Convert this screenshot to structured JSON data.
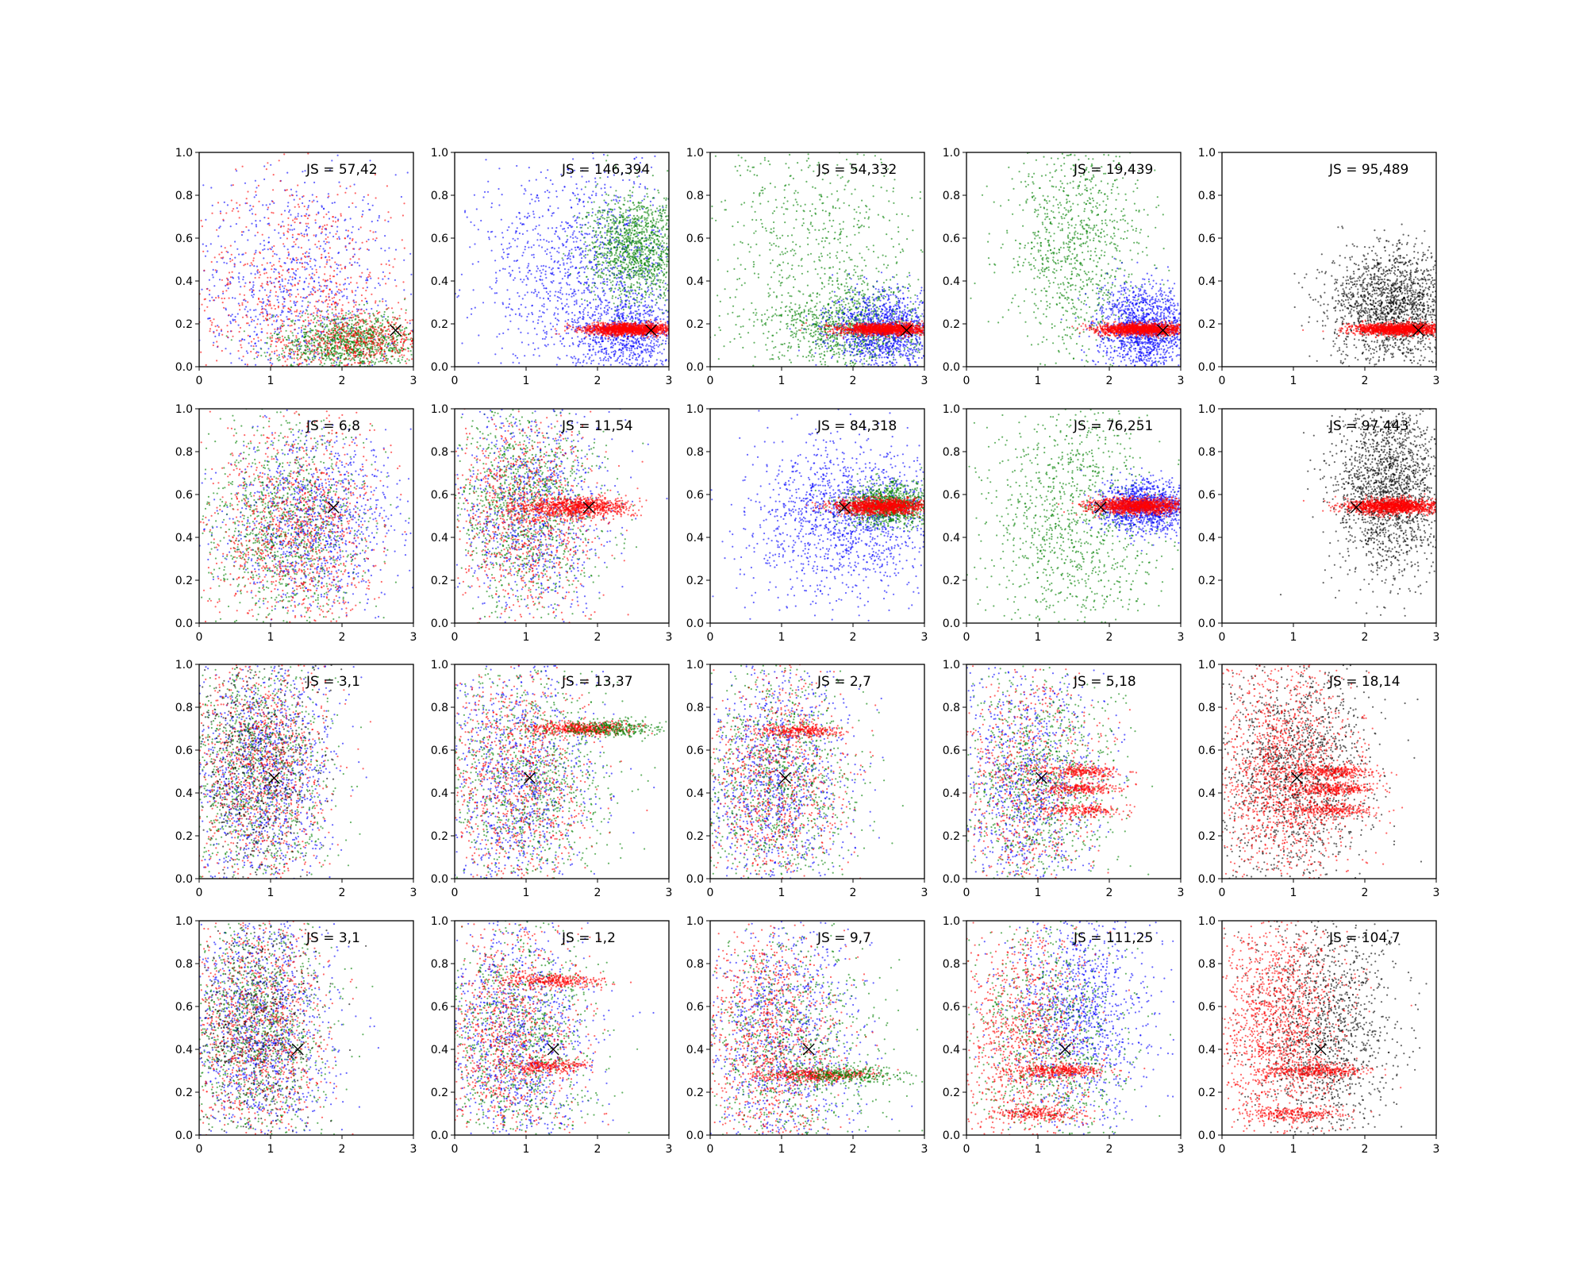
{
  "chart_data": {
    "type": "scatter",
    "grid": {
      "rows": 4,
      "cols": 5
    },
    "xlim": [
      0,
      3
    ],
    "ylim": [
      0,
      1
    ],
    "xticks": [
      "0",
      "1",
      "2",
      "3"
    ],
    "yticks": [
      "0.0",
      "0.2",
      "0.4",
      "0.6",
      "0.8",
      "1.0"
    ],
    "legend": "none",
    "grid_lines": false,
    "colors": {
      "blue": "#0000ff",
      "green": "#008000",
      "red": "#ff0000",
      "black": "#000000"
    },
    "marker": {
      "symbol": "x",
      "color": "#000000"
    },
    "panels": [
      {
        "label": "JS = 57,42",
        "marker_x": 2.75,
        "marker_y": 0.17,
        "clouds": [
          {
            "color": "blue",
            "n": 900,
            "mx": 1.3,
            "sx": 0.75,
            "my": 0.35,
            "sy": 0.28
          },
          {
            "color": "red",
            "n": 900,
            "mx": 1.4,
            "sx": 0.75,
            "my": 0.3,
            "sy": 0.3
          },
          {
            "color": "green",
            "n": 1100,
            "mx": 2.15,
            "sx": 0.55,
            "my": 0.11,
            "sy": 0.07
          },
          {
            "color": "red",
            "n": 500,
            "mx": 2.3,
            "sx": 0.45,
            "my": 0.12,
            "sy": 0.06
          }
        ]
      },
      {
        "label": "JS = 146,394",
        "marker_x": 2.75,
        "marker_y": 0.17,
        "clouds": [
          {
            "color": "blue",
            "n": 1300,
            "mx": 1.9,
            "sx": 0.8,
            "my": 0.45,
            "sy": 0.25
          },
          {
            "color": "blue",
            "n": 800,
            "mx": 2.4,
            "sx": 0.4,
            "my": 0.15,
            "sy": 0.09
          },
          {
            "color": "green",
            "n": 1300,
            "mx": 2.55,
            "sx": 0.35,
            "my": 0.55,
            "sy": 0.13
          },
          {
            "color": "red",
            "n": 1400,
            "mx": 2.45,
            "sx": 0.32,
            "my": 0.175,
            "sy": 0.014
          }
        ]
      },
      {
        "label": "JS = 54,332",
        "marker_x": 2.75,
        "marker_y": 0.17,
        "clouds": [
          {
            "color": "green",
            "n": 700,
            "mx": 1.5,
            "sx": 0.75,
            "my": 0.55,
            "sy": 0.3
          },
          {
            "color": "green",
            "n": 1000,
            "mx": 2.0,
            "sx": 0.55,
            "my": 0.18,
            "sy": 0.1
          },
          {
            "color": "blue",
            "n": 1200,
            "mx": 2.45,
            "sx": 0.38,
            "my": 0.17,
            "sy": 0.09
          },
          {
            "color": "red",
            "n": 1400,
            "mx": 2.45,
            "sx": 0.32,
            "my": 0.175,
            "sy": 0.014
          }
        ]
      },
      {
        "label": "JS = 19,439",
        "marker_x": 2.75,
        "marker_y": 0.17,
        "clouds": [
          {
            "color": "green",
            "n": 1000,
            "mx": 1.55,
            "sx": 0.5,
            "my": 0.55,
            "sy": 0.28
          },
          {
            "color": "blue",
            "n": 1400,
            "mx": 2.5,
            "sx": 0.33,
            "my": 0.18,
            "sy": 0.1
          },
          {
            "color": "red",
            "n": 1400,
            "mx": 2.45,
            "sx": 0.32,
            "my": 0.175,
            "sy": 0.014
          }
        ]
      },
      {
        "label": "JS = 95,489",
        "marker_x": 2.75,
        "marker_y": 0.17,
        "clouds": [
          {
            "color": "black",
            "n": 1800,
            "mx": 2.4,
            "sx": 0.45,
            "my": 0.28,
            "sy": 0.14
          },
          {
            "color": "red",
            "n": 1400,
            "mx": 2.45,
            "sx": 0.32,
            "my": 0.175,
            "sy": 0.014
          }
        ]
      },
      {
        "label": "JS = 6,8",
        "marker_x": 1.88,
        "marker_y": 0.54,
        "clouds": [
          {
            "color": "blue",
            "n": 1100,
            "mx": 1.6,
            "sx": 0.6,
            "my": 0.48,
            "sy": 0.2
          },
          {
            "color": "green",
            "n": 1100,
            "mx": 1.2,
            "sx": 0.55,
            "my": 0.45,
            "sy": 0.25
          },
          {
            "color": "red",
            "n": 1100,
            "mx": 1.35,
            "sx": 0.6,
            "my": 0.45,
            "sy": 0.25
          }
        ]
      },
      {
        "label": "JS = 11,54",
        "marker_x": 1.88,
        "marker_y": 0.54,
        "clouds": [
          {
            "color": "green",
            "n": 1200,
            "mx": 1.0,
            "sx": 0.5,
            "my": 0.55,
            "sy": 0.25
          },
          {
            "color": "blue",
            "n": 900,
            "mx": 1.1,
            "sx": 0.55,
            "my": 0.5,
            "sy": 0.25
          },
          {
            "color": "red",
            "n": 900,
            "mx": 1.0,
            "sx": 0.5,
            "my": 0.5,
            "sy": 0.25
          },
          {
            "color": "red",
            "n": 900,
            "mx": 1.7,
            "sx": 0.4,
            "my": 0.54,
            "sy": 0.025
          }
        ]
      },
      {
        "label": "JS = 84,318",
        "marker_x": 1.88,
        "marker_y": 0.54,
        "clouds": [
          {
            "color": "blue",
            "n": 1000,
            "mx": 2.1,
            "sx": 0.6,
            "my": 0.52,
            "sy": 0.15
          },
          {
            "color": "blue",
            "n": 500,
            "mx": 1.6,
            "sx": 0.7,
            "my": 0.45,
            "sy": 0.25
          },
          {
            "color": "green",
            "n": 1000,
            "mx": 2.5,
            "sx": 0.3,
            "my": 0.55,
            "sy": 0.05
          },
          {
            "color": "red",
            "n": 1300,
            "mx": 2.4,
            "sx": 0.33,
            "my": 0.545,
            "sy": 0.018
          }
        ]
      },
      {
        "label": "JS = 76,251",
        "marker_x": 1.88,
        "marker_y": 0.54,
        "clouds": [
          {
            "color": "green",
            "n": 1100,
            "mx": 1.5,
            "sx": 0.6,
            "my": 0.5,
            "sy": 0.28
          },
          {
            "color": "blue",
            "n": 1200,
            "mx": 2.5,
            "sx": 0.33,
            "my": 0.54,
            "sy": 0.06
          },
          {
            "color": "red",
            "n": 1300,
            "mx": 2.4,
            "sx": 0.33,
            "my": 0.545,
            "sy": 0.018
          }
        ]
      },
      {
        "label": "JS = 97,443",
        "marker_x": 1.88,
        "marker_y": 0.54,
        "clouds": [
          {
            "color": "black",
            "n": 1900,
            "mx": 2.35,
            "sx": 0.4,
            "my": 0.62,
            "sy": 0.2
          },
          {
            "color": "red",
            "n": 1300,
            "mx": 2.4,
            "sx": 0.33,
            "my": 0.545,
            "sy": 0.018
          }
        ]
      },
      {
        "label": "JS = 3,1",
        "marker_x": 1.05,
        "marker_y": 0.47,
        "clouds": [
          {
            "color": "blue",
            "n": 1200,
            "mx": 0.85,
            "sx": 0.5,
            "my": 0.5,
            "sy": 0.28
          },
          {
            "color": "green",
            "n": 1100,
            "mx": 0.8,
            "sx": 0.5,
            "my": 0.5,
            "sy": 0.28
          },
          {
            "color": "red",
            "n": 1100,
            "mx": 0.8,
            "sx": 0.5,
            "my": 0.5,
            "sy": 0.28
          },
          {
            "color": "black",
            "n": 500,
            "mx": 0.8,
            "sx": 0.45,
            "my": 0.5,
            "sy": 0.28
          }
        ]
      },
      {
        "label": "JS = 13,37",
        "marker_x": 1.05,
        "marker_y": 0.47,
        "clouds": [
          {
            "color": "blue",
            "n": 1000,
            "mx": 0.9,
            "sx": 0.55,
            "my": 0.45,
            "sy": 0.28
          },
          {
            "color": "green",
            "n": 1000,
            "mx": 1.0,
            "sx": 0.6,
            "my": 0.45,
            "sy": 0.28
          },
          {
            "color": "red",
            "n": 900,
            "mx": 0.85,
            "sx": 0.5,
            "my": 0.45,
            "sy": 0.28
          },
          {
            "color": "red",
            "n": 500,
            "mx": 1.8,
            "sx": 0.35,
            "my": 0.7,
            "sy": 0.015
          },
          {
            "color": "green",
            "n": 300,
            "mx": 2.2,
            "sx": 0.35,
            "my": 0.7,
            "sy": 0.02
          }
        ]
      },
      {
        "label": "JS = 2,7",
        "marker_x": 1.05,
        "marker_y": 0.47,
        "clouds": [
          {
            "color": "blue",
            "n": 1100,
            "mx": 0.9,
            "sx": 0.5,
            "my": 0.45,
            "sy": 0.28
          },
          {
            "color": "green",
            "n": 1000,
            "mx": 0.95,
            "sx": 0.55,
            "my": 0.45,
            "sy": 0.28
          },
          {
            "color": "red",
            "n": 900,
            "mx": 0.85,
            "sx": 0.5,
            "my": 0.45,
            "sy": 0.28
          },
          {
            "color": "red",
            "n": 300,
            "mx": 1.3,
            "sx": 0.3,
            "my": 0.69,
            "sy": 0.015
          }
        ]
      },
      {
        "label": "JS = 5,18",
        "marker_x": 1.05,
        "marker_y": 0.47,
        "clouds": [
          {
            "color": "blue",
            "n": 1000,
            "mx": 0.85,
            "sx": 0.5,
            "my": 0.45,
            "sy": 0.28
          },
          {
            "color": "green",
            "n": 1000,
            "mx": 1.0,
            "sx": 0.55,
            "my": 0.45,
            "sy": 0.28
          },
          {
            "color": "red",
            "n": 700,
            "mx": 0.85,
            "sx": 0.5,
            "my": 0.45,
            "sy": 0.28
          },
          {
            "color": "red",
            "n": 250,
            "mx": 1.6,
            "sx": 0.3,
            "my": 0.5,
            "sy": 0.015
          },
          {
            "color": "red",
            "n": 250,
            "mx": 1.6,
            "sx": 0.3,
            "my": 0.42,
            "sy": 0.015
          },
          {
            "color": "red",
            "n": 200,
            "mx": 1.6,
            "sx": 0.3,
            "my": 0.32,
            "sy": 0.015
          }
        ]
      },
      {
        "label": "JS = 18,14",
        "marker_x": 1.05,
        "marker_y": 0.47,
        "clouds": [
          {
            "color": "black",
            "n": 1500,
            "mx": 1.05,
            "sx": 0.55,
            "my": 0.5,
            "sy": 0.27
          },
          {
            "color": "red",
            "n": 1500,
            "mx": 0.85,
            "sx": 0.5,
            "my": 0.5,
            "sy": 0.27
          },
          {
            "color": "red",
            "n": 300,
            "mx": 1.55,
            "sx": 0.3,
            "my": 0.5,
            "sy": 0.015
          },
          {
            "color": "red",
            "n": 300,
            "mx": 1.55,
            "sx": 0.3,
            "my": 0.42,
            "sy": 0.015
          },
          {
            "color": "red",
            "n": 250,
            "mx": 1.55,
            "sx": 0.3,
            "my": 0.32,
            "sy": 0.015
          }
        ]
      },
      {
        "label": "JS = 3,1",
        "marker_x": 1.38,
        "marker_y": 0.4,
        "clouds": [
          {
            "color": "blue",
            "n": 1200,
            "mx": 0.85,
            "sx": 0.5,
            "my": 0.5,
            "sy": 0.28
          },
          {
            "color": "green",
            "n": 1100,
            "mx": 0.8,
            "sx": 0.5,
            "my": 0.5,
            "sy": 0.28
          },
          {
            "color": "red",
            "n": 1100,
            "mx": 0.8,
            "sx": 0.5,
            "my": 0.5,
            "sy": 0.28
          },
          {
            "color": "black",
            "n": 500,
            "mx": 0.8,
            "sx": 0.45,
            "my": 0.5,
            "sy": 0.28
          }
        ]
      },
      {
        "label": "JS = 1,2",
        "marker_x": 1.38,
        "marker_y": 0.4,
        "clouds": [
          {
            "color": "blue",
            "n": 1100,
            "mx": 0.85,
            "sx": 0.5,
            "my": 0.45,
            "sy": 0.28
          },
          {
            "color": "green",
            "n": 1000,
            "mx": 0.9,
            "sx": 0.55,
            "my": 0.45,
            "sy": 0.28
          },
          {
            "color": "red",
            "n": 1000,
            "mx": 0.8,
            "sx": 0.5,
            "my": 0.45,
            "sy": 0.28
          },
          {
            "color": "red",
            "n": 300,
            "mx": 1.4,
            "sx": 0.35,
            "my": 0.72,
            "sy": 0.015
          },
          {
            "color": "red",
            "n": 250,
            "mx": 1.3,
            "sx": 0.3,
            "my": 0.32,
            "sy": 0.015
          }
        ]
      },
      {
        "label": "JS = 9,7",
        "marker_x": 1.38,
        "marker_y": 0.4,
        "clouds": [
          {
            "color": "blue",
            "n": 1000,
            "mx": 1.0,
            "sx": 0.55,
            "my": 0.45,
            "sy": 0.28
          },
          {
            "color": "green",
            "n": 900,
            "mx": 1.1,
            "sx": 0.6,
            "my": 0.4,
            "sy": 0.28
          },
          {
            "color": "red",
            "n": 1000,
            "mx": 0.8,
            "sx": 0.5,
            "my": 0.45,
            "sy": 0.28
          },
          {
            "color": "red",
            "n": 400,
            "mx": 1.5,
            "sx": 0.4,
            "my": 0.28,
            "sy": 0.015
          },
          {
            "color": "green",
            "n": 300,
            "mx": 1.9,
            "sx": 0.4,
            "my": 0.28,
            "sy": 0.02
          }
        ]
      },
      {
        "label": "JS = 111,25",
        "marker_x": 1.38,
        "marker_y": 0.4,
        "clouds": [
          {
            "color": "blue",
            "n": 1200,
            "mx": 1.55,
            "sx": 0.5,
            "my": 0.55,
            "sy": 0.25
          },
          {
            "color": "green",
            "n": 900,
            "mx": 1.15,
            "sx": 0.55,
            "my": 0.45,
            "sy": 0.28
          },
          {
            "color": "red",
            "n": 1000,
            "mx": 0.8,
            "sx": 0.45,
            "my": 0.45,
            "sy": 0.28
          },
          {
            "color": "red",
            "n": 350,
            "mx": 1.3,
            "sx": 0.35,
            "my": 0.3,
            "sy": 0.015
          },
          {
            "color": "red",
            "n": 250,
            "mx": 1.0,
            "sx": 0.35,
            "my": 0.1,
            "sy": 0.015
          }
        ]
      },
      {
        "label": "JS = 104,7",
        "marker_x": 1.38,
        "marker_y": 0.4,
        "clouds": [
          {
            "color": "black",
            "n": 1400,
            "mx": 1.45,
            "sx": 0.5,
            "my": 0.5,
            "sy": 0.27
          },
          {
            "color": "red",
            "n": 1500,
            "mx": 0.8,
            "sx": 0.45,
            "my": 0.5,
            "sy": 0.27
          },
          {
            "color": "red",
            "n": 350,
            "mx": 1.3,
            "sx": 0.35,
            "my": 0.3,
            "sy": 0.015
          },
          {
            "color": "red",
            "n": 250,
            "mx": 1.0,
            "sx": 0.35,
            "my": 0.1,
            "sy": 0.015
          }
        ]
      }
    ]
  }
}
